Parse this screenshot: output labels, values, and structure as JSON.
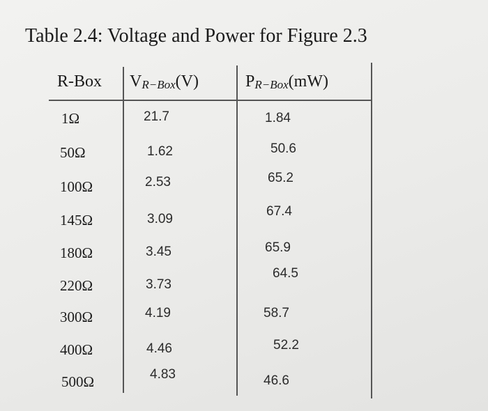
{
  "title": "Table 2.4: Voltage and Power for Figure 2.3",
  "table": {
    "headers": {
      "rbox": "R-Box",
      "v_main": "V",
      "v_sub": "R−Box",
      "v_unit": "(V)",
      "p_main": "P",
      "p_sub": "R−Box",
      "p_unit": "(mW)"
    },
    "rows": [
      {
        "r": "1Ω",
        "v": "21.7",
        "p": "1.84"
      },
      {
        "r": "50Ω",
        "v": "1.62",
        "p": "50.6"
      },
      {
        "r": "100Ω",
        "v": "2.53",
        "p": "65.2"
      },
      {
        "r": "145Ω",
        "v": "3.09",
        "p": "67.4"
      },
      {
        "r": "180Ω",
        "v": "3.45",
        "p": "65.9"
      },
      {
        "r": "220Ω",
        "v": "3.73",
        "p": "64.5"
      },
      {
        "r": "300Ω",
        "v": "4.19",
        "p": "58.7"
      },
      {
        "r": "400Ω",
        "v": "4.46",
        "p": "52.2"
      },
      {
        "r": "500Ω",
        "v": "4.83",
        "p": "46.6"
      }
    ]
  }
}
